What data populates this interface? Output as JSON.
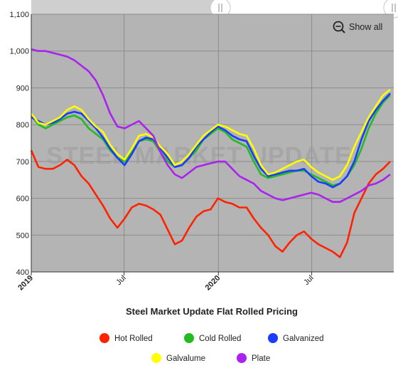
{
  "controls": {
    "show_all_label": "Show all"
  },
  "watermark": "STEEL MARKET UPDATE",
  "chart_data": {
    "type": "line",
    "title": "Steel Market Update Flat Rolled Pricing",
    "xlabel": "",
    "ylabel": "",
    "x_start": "2019-01-01",
    "x_end": "2020-12-08",
    "x_step_weeks": 2,
    "x_ticks": [
      {
        "date": "2019-01-01",
        "label": "2019",
        "bold": true
      },
      {
        "date": "2019-07-01",
        "label": "Jul",
        "bold": false
      },
      {
        "date": "2020-01-01",
        "label": "2020",
        "bold": true
      },
      {
        "date": "2020-07-01",
        "label": "Jul",
        "bold": false
      }
    ],
    "ylim": [
      400,
      1100
    ],
    "y_ticks": [
      400,
      500,
      600,
      700,
      800,
      900,
      1000,
      1100
    ],
    "y_tick_labels": [
      "400",
      "500",
      "600",
      "700",
      "800",
      "900",
      "1,000",
      "1,100"
    ],
    "grid": true,
    "legend_position": "bottom",
    "series": [
      {
        "name": "Hot Rolled",
        "color": "#ff2200",
        "values": [
          730,
          685,
          680,
          680,
          690,
          705,
          690,
          660,
          640,
          610,
          580,
          545,
          520,
          545,
          575,
          585,
          580,
          570,
          555,
          515,
          475,
          485,
          520,
          550,
          565,
          570,
          600,
          590,
          585,
          575,
          575,
          545,
          520,
          500,
          470,
          455,
          480,
          500,
          510,
          490,
          475,
          465,
          455,
          440,
          480,
          560,
          600,
          640,
          665,
          680,
          700
        ]
      },
      {
        "name": "Cold Rolled",
        "color": "#22bb22",
        "values": [
          825,
          800,
          790,
          800,
          810,
          820,
          825,
          815,
          790,
          775,
          760,
          730,
          710,
          700,
          725,
          755,
          760,
          755,
          725,
          700,
          685,
          690,
          710,
          730,
          760,
          775,
          790,
          780,
          760,
          750,
          740,
          700,
          665,
          655,
          660,
          665,
          670,
          675,
          675,
          665,
          655,
          645,
          635,
          640,
          660,
          690,
          735,
          790,
          830,
          860,
          880
        ]
      },
      {
        "name": "Galvanized",
        "color": "#1a3cff",
        "values": [
          820,
          810,
          800,
          805,
          815,
          830,
          835,
          830,
          810,
          790,
          765,
          735,
          710,
          690,
          720,
          755,
          765,
          760,
          735,
          710,
          685,
          690,
          710,
          740,
          760,
          780,
          795,
          785,
          770,
          760,
          755,
          715,
          680,
          660,
          665,
          670,
          675,
          675,
          680,
          660,
          645,
          640,
          630,
          640,
          660,
          700,
          760,
          810,
          840,
          865,
          885
        ]
      },
      {
        "name": "Galvalume",
        "color": "#ffff00",
        "values": [
          830,
          805,
          800,
          810,
          820,
          840,
          850,
          840,
          815,
          795,
          780,
          745,
          720,
          705,
          735,
          770,
          775,
          765,
          740,
          720,
          690,
          700,
          720,
          745,
          770,
          785,
          800,
          795,
          785,
          775,
          770,
          735,
          690,
          665,
          670,
          680,
          690,
          700,
          705,
          685,
          670,
          660,
          650,
          660,
          690,
          740,
          780,
          820,
          850,
          880,
          895
        ]
      },
      {
        "name": "Plate",
        "color": "#aa22ee",
        "values": [
          1005,
          1000,
          1000,
          995,
          990,
          985,
          975,
          960,
          945,
          920,
          880,
          830,
          795,
          790,
          800,
          810,
          790,
          770,
          725,
          690,
          665,
          655,
          670,
          685,
          690,
          695,
          700,
          700,
          680,
          660,
          650,
          640,
          620,
          610,
          600,
          595,
          600,
          605,
          610,
          615,
          610,
          600,
          590,
          590,
          600,
          610,
          620,
          635,
          640,
          650,
          665
        ]
      }
    ]
  }
}
